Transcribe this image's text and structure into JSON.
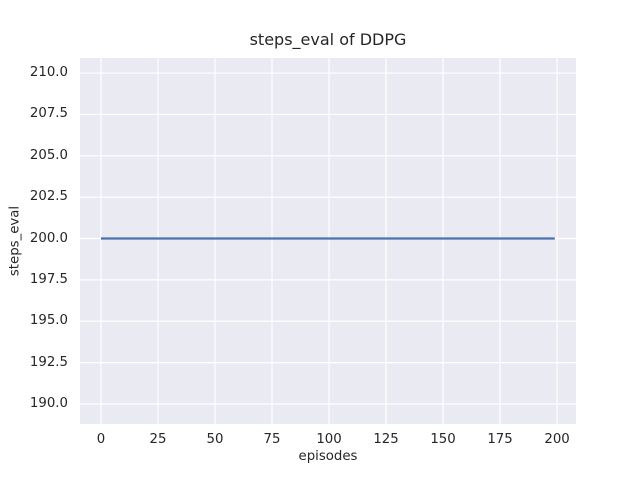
{
  "figure": {
    "background": "#ffffff",
    "plot_background": "#eaeaf2",
    "grid_color": "#ffffff",
    "text_color": "#262626"
  },
  "chart_data": {
    "type": "line",
    "title": "steps_eval of DDPG",
    "xlabel": "episodes",
    "ylabel": "steps_eval",
    "xlim": [
      -9.2,
      208.3
    ],
    "ylim": [
      188.79,
      210.91
    ],
    "grid": true,
    "legend_position": "none",
    "x_ticks": [
      {
        "value": 0,
        "label": "0"
      },
      {
        "value": 25,
        "label": "25"
      },
      {
        "value": 50,
        "label": "50"
      },
      {
        "value": 75,
        "label": "75"
      },
      {
        "value": 100,
        "label": "100"
      },
      {
        "value": 125,
        "label": "125"
      },
      {
        "value": 150,
        "label": "150"
      },
      {
        "value": 175,
        "label": "175"
      },
      {
        "value": 200,
        "label": "200"
      }
    ],
    "y_ticks": [
      {
        "value": 190.0,
        "label": "190.0"
      },
      {
        "value": 192.5,
        "label": "192.5"
      },
      {
        "value": 195.0,
        "label": "195.0"
      },
      {
        "value": 197.5,
        "label": "197.5"
      },
      {
        "value": 200.0,
        "label": "200.0"
      },
      {
        "value": 202.5,
        "label": "202.5"
      },
      {
        "value": 205.0,
        "label": "205.0"
      },
      {
        "value": 207.5,
        "label": "207.5"
      },
      {
        "value": 210.0,
        "label": "210.0"
      }
    ],
    "series": [
      {
        "name": "steps_eval",
        "color": "#4c72b0",
        "line_width": 2.3,
        "x": [
          0,
          199
        ],
        "y": [
          200.0,
          200.0
        ]
      }
    ]
  }
}
